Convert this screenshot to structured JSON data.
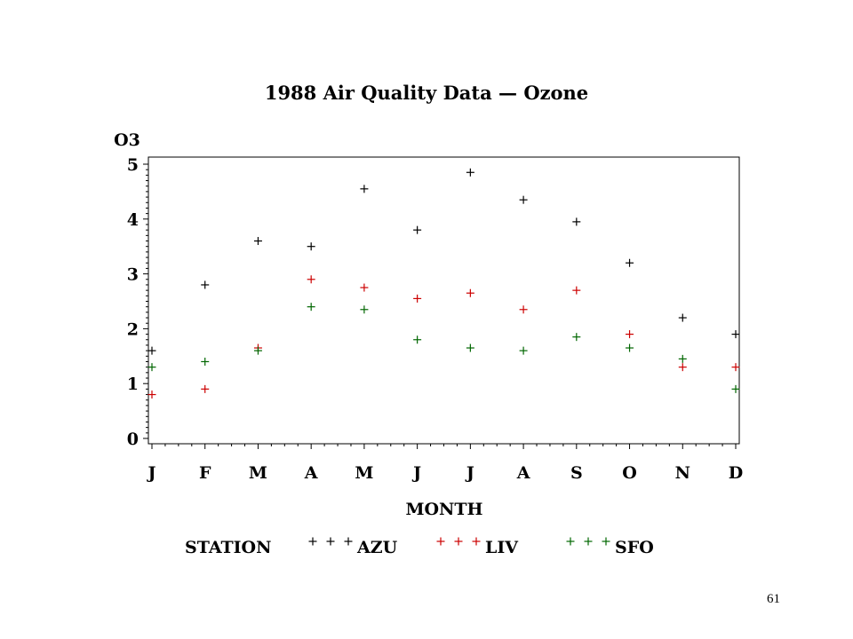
{
  "chart_data": {
    "type": "scatter",
    "title": "1988 Air Quality Data — Ozone",
    "ylabel": "O3",
    "xlabel": "MONTH",
    "categories": [
      "J",
      "F",
      "M",
      "A",
      "M",
      "J",
      "J",
      "A",
      "S",
      "O",
      "N",
      "D"
    ],
    "ylim": [
      0,
      5
    ],
    "yticks": [
      0,
      1,
      2,
      3,
      4,
      5
    ],
    "marker": "+",
    "legend_title": "STATION",
    "legend_position": "bottom",
    "series": [
      {
        "name": "AZU",
        "color": "#000000",
        "values": [
          1.6,
          2.8,
          3.6,
          3.5,
          4.55,
          3.8,
          4.85,
          4.35,
          3.95,
          3.2,
          2.2,
          1.9
        ]
      },
      {
        "name": "LIV",
        "color": "#cc0000",
        "values": [
          0.8,
          0.9,
          1.65,
          2.9,
          2.75,
          2.55,
          2.65,
          2.35,
          2.7,
          1.9,
          1.3,
          1.3
        ]
      },
      {
        "name": "SFO",
        "color": "#006600",
        "values": [
          1.3,
          1.4,
          1.6,
          2.4,
          2.35,
          1.8,
          1.65,
          1.6,
          1.85,
          1.65,
          1.45,
          0.9
        ]
      }
    ]
  },
  "page": {
    "number": "61"
  }
}
